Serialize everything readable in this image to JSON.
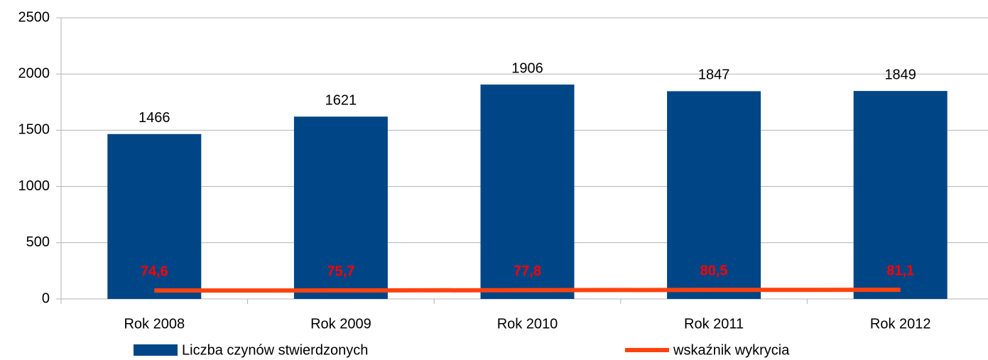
{
  "chart_data": {
    "type": "bar",
    "categories": [
      "Rok 2008",
      "Rok 2009",
      "Rok 2010",
      "Rok 2011",
      "Rok 2012"
    ],
    "series": [
      {
        "name": "Liczba czynów stwierdzonych",
        "color": "#004586",
        "values": [
          1466,
          1621,
          1906,
          1847,
          1849
        ]
      },
      {
        "name": "wskaźnik wykrycia",
        "color": "#ff420e",
        "type": "line",
        "values": [
          74.6,
          75.7,
          77.8,
          80.5,
          81.1
        ],
        "value_labels": [
          "74,6",
          "75,7",
          "77,8",
          "80,5",
          "81,1"
        ]
      }
    ],
    "ylim": [
      0,
      2500
    ],
    "yticks": [
      0,
      500,
      1000,
      1500,
      2000,
      2500
    ],
    "grid": true,
    "legend": "bottom"
  }
}
